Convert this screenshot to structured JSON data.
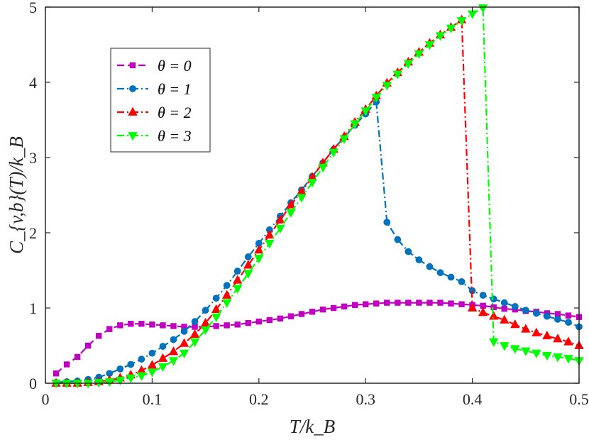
{
  "chart_data": {
    "type": "line",
    "xlabel": "T/k_B",
    "ylabel": "C_{v,b}(T)/k_B",
    "xlim": [
      0,
      0.5
    ],
    "ylim": [
      0,
      5
    ],
    "xticks": [
      "0",
      "0.1",
      "0.2",
      "0.3",
      "0.4",
      "0.5"
    ],
    "yticks": [
      "0",
      "1",
      "2",
      "3",
      "4",
      "5"
    ],
    "grid": false,
    "legend_position": "top-left",
    "x": [
      0.01,
      0.02,
      0.03,
      0.04,
      0.05,
      0.06,
      0.07,
      0.08,
      0.09,
      0.1,
      0.11,
      0.12,
      0.13,
      0.14,
      0.15,
      0.16,
      0.17,
      0.18,
      0.19,
      0.2,
      0.21,
      0.22,
      0.23,
      0.24,
      0.25,
      0.26,
      0.27,
      0.28,
      0.29,
      0.3,
      0.31,
      0.32,
      0.33,
      0.34,
      0.35,
      0.36,
      0.37,
      0.38,
      0.39,
      0.4,
      0.41,
      0.42,
      0.43,
      0.44,
      0.45,
      0.46,
      0.47,
      0.48,
      0.49,
      0.5
    ],
    "series": [
      {
        "name": "θ = 0",
        "color": "#c000c0",
        "linestyle": "dashed",
        "marker": "square",
        "values": [
          0.13,
          0.25,
          0.35,
          0.5,
          0.63,
          0.72,
          0.77,
          0.79,
          0.79,
          0.78,
          0.77,
          0.76,
          0.75,
          0.75,
          0.75,
          0.76,
          0.77,
          0.78,
          0.8,
          0.82,
          0.84,
          0.86,
          0.89,
          0.92,
          0.95,
          0.98,
          1.0,
          1.02,
          1.04,
          1.05,
          1.06,
          1.07,
          1.07,
          1.07,
          1.07,
          1.07,
          1.07,
          1.06,
          1.05,
          1.04,
          1.03,
          1.01,
          0.99,
          0.98,
          0.96,
          0.95,
          0.93,
          0.92,
          0.9,
          0.88
        ]
      },
      {
        "name": "θ = 1",
        "color": "#0072bd",
        "linestyle": "dashdot",
        "marker": "circle",
        "values": [
          0.01,
          0.02,
          0.03,
          0.05,
          0.08,
          0.13,
          0.19,
          0.25,
          0.32,
          0.4,
          0.49,
          0.58,
          0.69,
          0.82,
          0.97,
          1.13,
          1.3,
          1.49,
          1.68,
          1.86,
          2.04,
          2.22,
          2.4,
          2.57,
          2.75,
          2.93,
          3.11,
          3.27,
          3.43,
          3.58,
          3.74,
          2.14,
          1.91,
          1.75,
          1.64,
          1.55,
          1.47,
          1.41,
          1.35,
          1.23,
          1.17,
          1.12,
          1.07,
          1.02,
          0.97,
          0.93,
          0.89,
          0.85,
          0.81,
          0.75
        ]
      },
      {
        "name": "θ = 2",
        "color": "#ff0000",
        "linestyle": "dashdot",
        "marker": "triangle-up",
        "values": [
          0.0,
          0.0,
          0.0,
          0.01,
          0.02,
          0.04,
          0.07,
          0.11,
          0.17,
          0.24,
          0.33,
          0.42,
          0.53,
          0.65,
          0.8,
          0.98,
          1.17,
          1.37,
          1.57,
          1.77,
          1.97,
          2.17,
          2.37,
          2.55,
          2.74,
          2.93,
          3.11,
          3.28,
          3.47,
          3.64,
          3.82,
          3.99,
          4.13,
          4.27,
          4.4,
          4.52,
          4.63,
          4.73,
          4.83,
          1.0,
          0.94,
          0.89,
          0.84,
          0.78,
          0.72,
          0.67,
          0.63,
          0.59,
          0.55,
          0.5
        ]
      },
      {
        "name": "θ = 3",
        "color": "#00ff00",
        "linestyle": "dashdot",
        "marker": "triangle-down",
        "values": [
          0.0,
          0.0,
          0.0,
          0.0,
          0.01,
          0.02,
          0.04,
          0.07,
          0.1,
          0.15,
          0.22,
          0.3,
          0.4,
          0.55,
          0.71,
          0.88,
          1.07,
          1.26,
          1.46,
          1.66,
          1.86,
          2.06,
          2.27,
          2.47,
          2.67,
          2.87,
          3.07,
          3.25,
          3.45,
          3.62,
          3.8,
          3.96,
          4.11,
          4.25,
          4.38,
          4.5,
          4.62,
          4.72,
          4.82,
          4.91,
          4.99,
          0.55,
          0.5,
          0.46,
          0.43,
          0.4,
          0.37,
          0.35,
          0.33,
          0.3
        ]
      }
    ]
  }
}
